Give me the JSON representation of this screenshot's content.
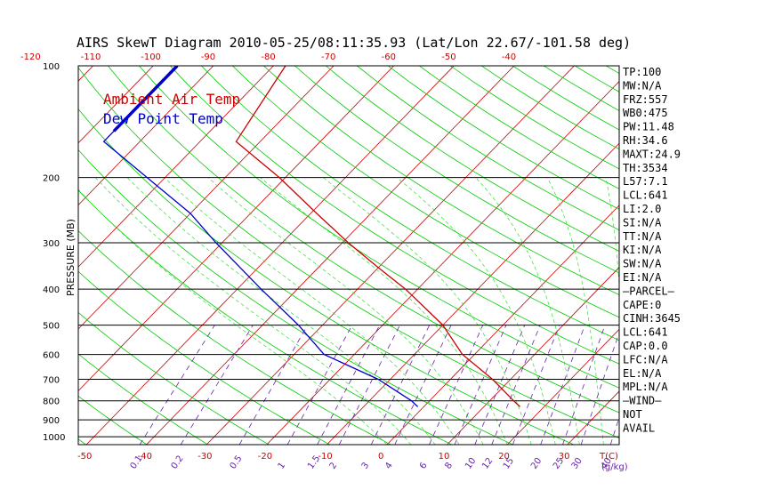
{
  "title": "AIRS SkewT Diagram 2010-05-25/08:11:35.93 (Lat/Lon 22.67/-101.58 deg)",
  "colors": {
    "ambient": "#cc0000",
    "dewpoint": "#0000cc",
    "isotherm": "#cc0000",
    "dry_adiabat": "#00cc00",
    "moist_adiabat": "#33dd33",
    "mixing_ratio": "#6622aa",
    "isobar": "#000000",
    "temp_tick": "#cc0000",
    "mix_tick": "#6622aa"
  },
  "chart_data": {
    "type": "line",
    "title": "AIRS SkewT Diagram 2010-05-25/08:11:35.93 (Lat/Lon 22.67/-101.58 deg)",
    "ylabel": "PRESSURE (MB)",
    "xlabel": "T(C)",
    "y_scale": "log-pressure",
    "ylim": [
      1000,
      100
    ],
    "pressure_ticks": [
      100,
      200,
      300,
      400,
      500,
      600,
      700,
      800,
      900,
      1000
    ],
    "temp_ticks_bottom": [
      -50,
      -40,
      -30,
      -20,
      -10,
      0,
      10,
      20,
      30
    ],
    "temp_ticks_top": [
      -120,
      -110,
      -100,
      -90,
      -80,
      -70,
      -60,
      -50,
      -40
    ],
    "mixing_ratio_ticks": [
      "0.1",
      "0.2",
      "0.5",
      "1",
      "1.5",
      "2",
      "3",
      "4",
      "6",
      "8",
      "10",
      "12",
      "15",
      "20",
      "25",
      "30",
      "40"
    ],
    "mixing_ratio_unit": "(g/kg)",
    "legend": [
      "Ambient Air Temp",
      "Dew Point Temp"
    ],
    "series": [
      {
        "name": "Ambient Air Temp",
        "points": [
          {
            "p": 100,
            "t": -78
          },
          {
            "p": 160,
            "t": -74
          },
          {
            "p": 200,
            "t": -61
          },
          {
            "p": 250,
            "t": -49
          },
          {
            "p": 300,
            "t": -39
          },
          {
            "p": 350,
            "t": -30
          },
          {
            "p": 400,
            "t": -22
          },
          {
            "p": 500,
            "t": -10
          },
          {
            "p": 600,
            "t": -2
          },
          {
            "p": 700,
            "t": 7
          },
          {
            "p": 800,
            "t": 14
          },
          {
            "p": 830,
            "t": 16
          }
        ]
      },
      {
        "name": "Dew Point Temp",
        "points": [
          {
            "p": 100,
            "t": -96
          },
          {
            "p": 150,
            "t": -96
          },
          {
            "p": 160,
            "t": -96
          },
          {
            "p": 200,
            "t": -83
          },
          {
            "p": 250,
            "t": -70
          },
          {
            "p": 300,
            "t": -61
          },
          {
            "p": 400,
            "t": -46
          },
          {
            "p": 500,
            "t": -34
          },
          {
            "p": 600,
            "t": -25
          },
          {
            "p": 700,
            "t": -12
          },
          {
            "p": 800,
            "t": -3
          },
          {
            "p": 830,
            "t": -1
          }
        ]
      }
    ],
    "indices": [
      "TP:100",
      "MW:N/A",
      "FRZ:557",
      "WB0:475",
      "PW:11.48",
      "RH:34.6",
      "MAXT:24.9",
      "TH:3534",
      "L57:7.1",
      "LCL:641",
      "LI:2.0",
      "SI:N/A",
      "TT:N/A",
      "KI:N/A",
      "SW:N/A",
      "EI:N/A",
      "—PARCEL—",
      "CAPE:0",
      "CINH:3645",
      "LCL:641",
      "CAP:0.0",
      "LFC:N/A",
      "EL:N/A",
      "MPL:N/A",
      "—WIND—",
      " NOT",
      " AVAIL"
    ]
  }
}
